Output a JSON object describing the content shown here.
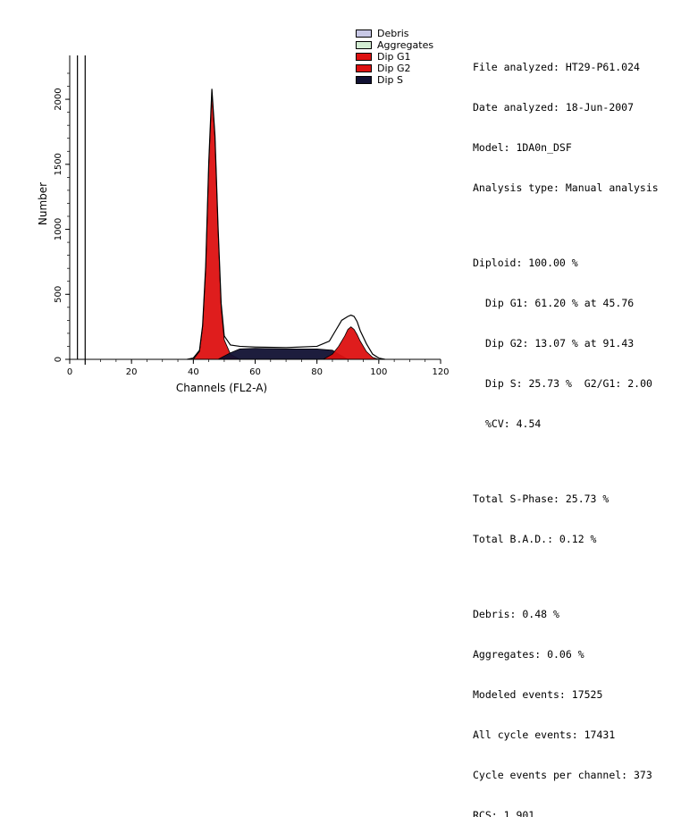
{
  "chart_data": {
    "type": "area",
    "xlabel": "Channels (FL2-A)",
    "ylabel": "Number",
    "xlim": [
      0,
      120
    ],
    "ylim": [
      0,
      2200
    ],
    "xticks": [
      "0",
      "20",
      "40",
      "60",
      "80",
      "100",
      "120"
    ],
    "yticks": [
      "0",
      "500",
      "1000",
      "1500",
      "2000"
    ],
    "grid": false,
    "legend_placement": "top-right",
    "legend": [
      {
        "label": "Debris",
        "color": "#c8c8e6"
      },
      {
        "label": "Aggregates",
        "color": "#d2ecd2"
      },
      {
        "label": "Dip G1",
        "color": "#dd1111"
      },
      {
        "label": "Dip G2",
        "color": "#dd1111"
      },
      {
        "label": "Dip S",
        "color": "#111133"
      }
    ],
    "series": [
      {
        "name": "Dip G1",
        "color": "#dd1111",
        "x": [
          40,
          42,
          43,
          44,
          45,
          46,
          47,
          48,
          49,
          50,
          52,
          55
        ],
        "y": [
          0,
          60,
          250,
          700,
          1500,
          2050,
          1700,
          1000,
          400,
          150,
          40,
          0
        ]
      },
      {
        "name": "Dip S",
        "color": "#111133",
        "x": [
          48,
          52,
          55,
          60,
          70,
          80,
          85,
          87,
          90
        ],
        "y": [
          0,
          50,
          80,
          85,
          80,
          80,
          70,
          40,
          0
        ]
      },
      {
        "name": "Dip G2",
        "color": "#dd1111",
        "x": [
          82,
          85,
          87,
          89,
          90,
          91,
          92,
          93,
          94,
          96,
          98,
          100
        ],
        "y": [
          0,
          40,
          100,
          180,
          230,
          250,
          230,
          190,
          140,
          60,
          15,
          0
        ]
      }
    ],
    "histogram": {
      "x": [
        38,
        40,
        42,
        43,
        44,
        45,
        46,
        47,
        48,
        49,
        50,
        52,
        55,
        60,
        70,
        80,
        84,
        86,
        88,
        90,
        91,
        92,
        93,
        94,
        96,
        98,
        100,
        102
      ],
      "y": [
        0,
        10,
        70,
        260,
        720,
        1520,
        2080,
        1720,
        1020,
        430,
        180,
        110,
        100,
        95,
        90,
        100,
        140,
        220,
        300,
        330,
        340,
        330,
        290,
        220,
        120,
        40,
        10,
        0
      ]
    }
  },
  "legend_labels": [
    "Debris",
    "Aggregates",
    "Dip G1",
    "Dip G2",
    "Dip S"
  ],
  "report": {
    "file": "File analyzed: HT29-P61.024",
    "date": "Date analyzed: 18-Jun-2007",
    "model": "Model: 1DA0n_DSF",
    "analysis": "Analysis type: Manual analysis",
    "diploid": "Diploid: 100.00 %",
    "dip_g1": "Dip G1: 61.20 % at 45.76",
    "dip_g2": "Dip G2: 13.07 % at 91.43",
    "dip_s": "Dip S: 25.73 %  G2/G1: 2.00",
    "cv": "%CV: 4.54",
    "total_s": "Total S-Phase: 25.73 %",
    "total_bad": "Total B.A.D.: 0.12 %",
    "debris": "Debris: 0.48 %",
    "aggregates": "Aggregates: 0.06 %",
    "modeled": "Modeled events: 17525",
    "all_cycle": "All cycle events: 17431",
    "per_channel": "Cycle events per channel: 373",
    "rcs": "RCS: 1.901"
  }
}
